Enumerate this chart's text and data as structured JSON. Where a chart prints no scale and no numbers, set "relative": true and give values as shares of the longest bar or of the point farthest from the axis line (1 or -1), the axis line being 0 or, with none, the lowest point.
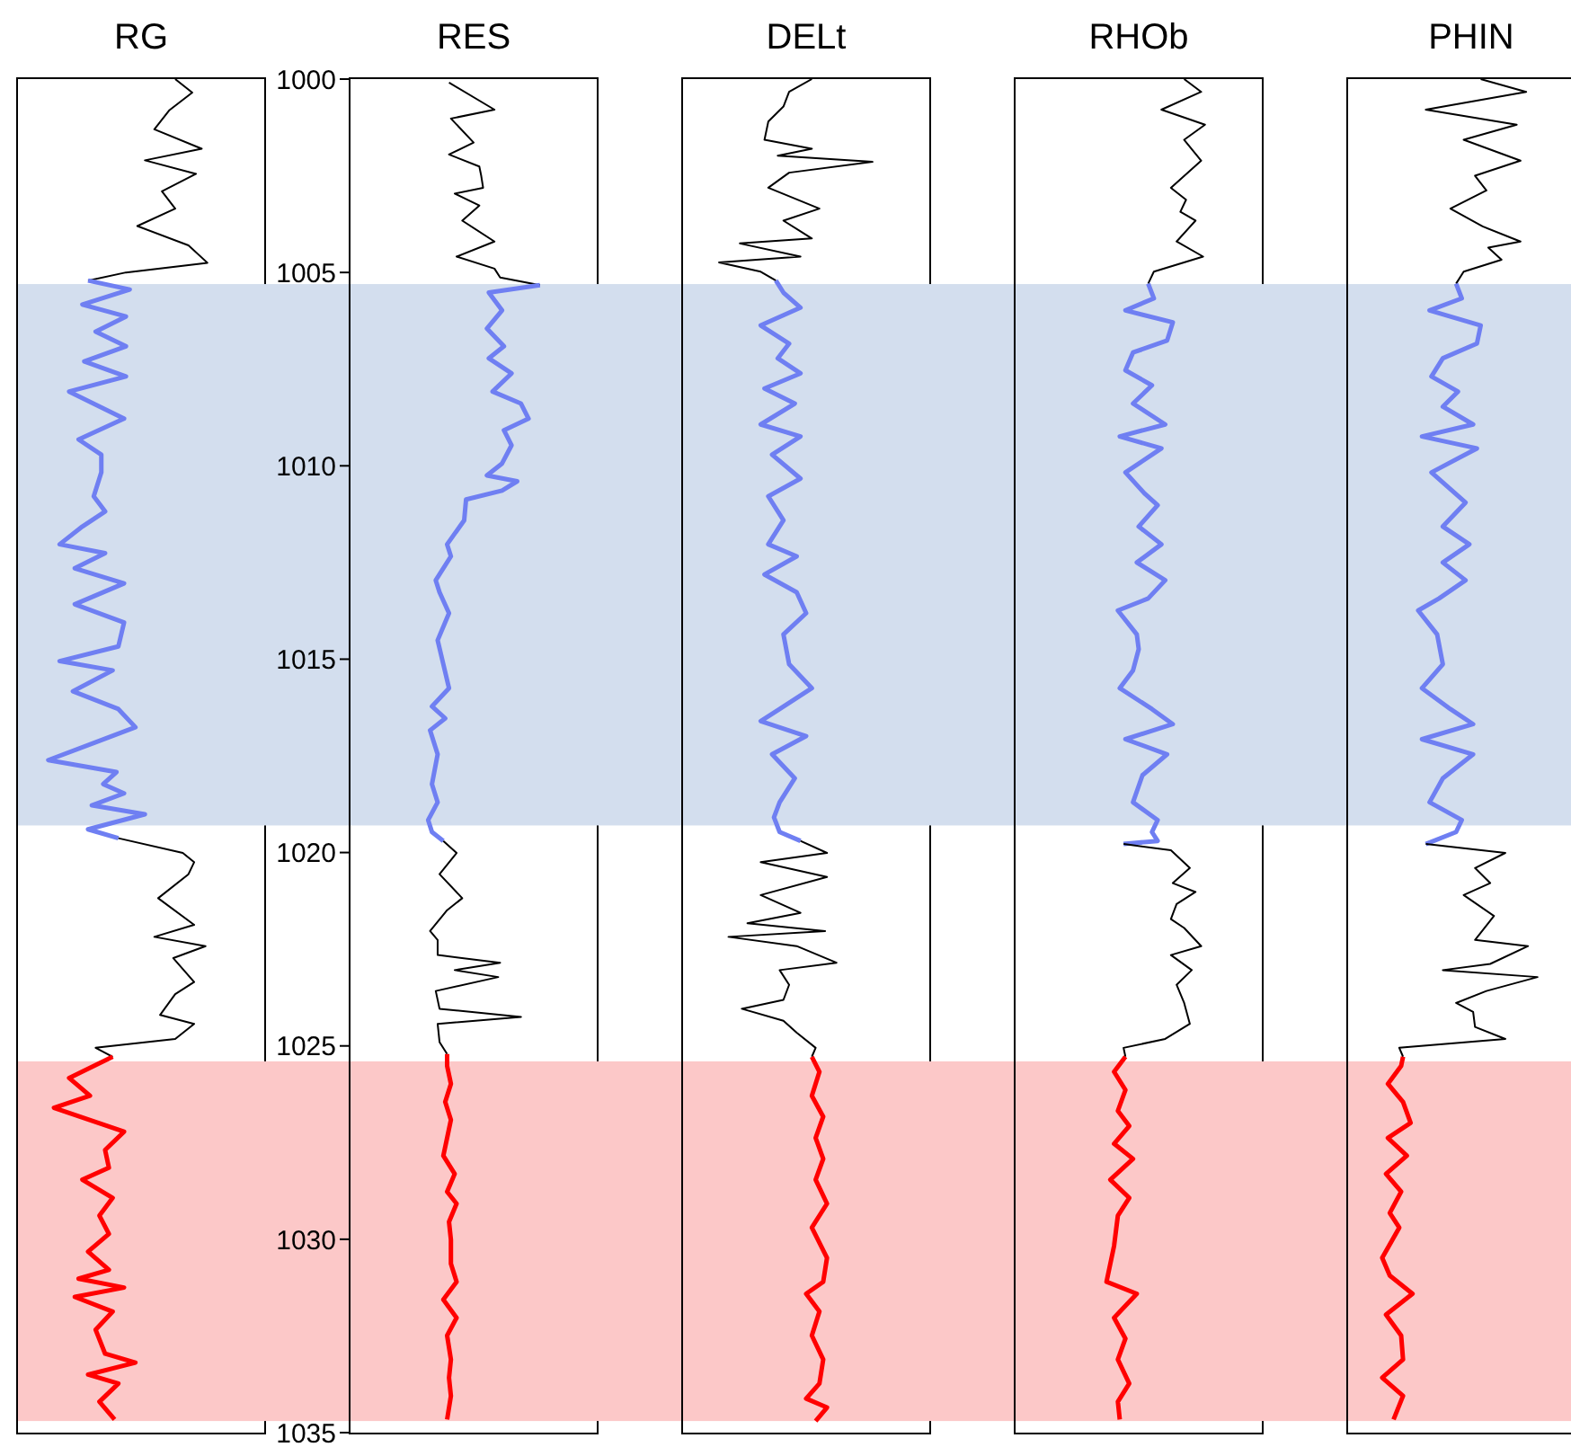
{
  "chart_data": [
    {
      "type": "line",
      "title": "RG",
      "orientation": "horizontal",
      "relative": true,
      "ylim": [
        1035,
        1000
      ],
      "tick_labels": false,
      "bands": [
        {
          "axis": "y",
          "from": 1005.3,
          "to": 1019.3,
          "color": "#d3deee"
        },
        {
          "axis": "y",
          "from": 1025.4,
          "to": 1034.7,
          "color": "#fcc8c8"
        }
      ],
      "series": [
        {
          "color": "#000000",
          "x": [
            1000,
            1000.35,
            1000.8,
            1001.3,
            1001.8,
            1002.1,
            1002.45,
            1002.9,
            1003.35,
            1003.8,
            1004.3,
            1004.75,
            1005.0,
            1005.21
          ],
          "values": [
            0.83,
            0.92,
            0.8,
            0.72,
            0.97,
            0.67,
            0.94,
            0.76,
            0.83,
            0.63,
            0.9,
            1.0,
            0.57,
            0.37
          ]
        },
        {
          "color": "#6f7ff2",
          "x": [
            1005.21,
            1005.44,
            1005.83,
            1006.14,
            1006.53,
            1006.91,
            1007.3,
            1007.69,
            1008.08,
            1008.78,
            1009.32,
            1009.71,
            1010.17,
            1010.79,
            1011.18,
            1011.57,
            1012.03,
            1012.26,
            1012.65,
            1013.04,
            1013.58,
            1014.05,
            1014.67,
            1015.05,
            1015.29,
            1015.83,
            1016.29,
            1016.76,
            1017.15,
            1017.61,
            1017.92,
            1018.23,
            1018.47,
            1018.78,
            1019.01,
            1019.4,
            1019.63
          ],
          "values": [
            0.37,
            0.59,
            0.34,
            0.57,
            0.41,
            0.57,
            0.35,
            0.57,
            0.27,
            0.56,
            0.32,
            0.44,
            0.44,
            0.4,
            0.46,
            0.34,
            0.22,
            0.46,
            0.3,
            0.56,
            0.3,
            0.56,
            0.53,
            0.22,
            0.5,
            0.29,
            0.53,
            0.62,
            0.41,
            0.16,
            0.52,
            0.45,
            0.56,
            0.39,
            0.67,
            0.37,
            0.53
          ]
        },
        {
          "color": "#000000",
          "x": [
            1019.63,
            1020.01,
            1020.25,
            1020.56,
            1021.18,
            1021.87,
            1022.18,
            1022.42,
            1022.73,
            1023.35,
            1023.66,
            1024.2,
            1024.43,
            1024.82,
            1025.05,
            1025.28
          ],
          "values": [
            0.53,
            0.87,
            0.93,
            0.9,
            0.74,
            0.93,
            0.72,
            0.99,
            0.82,
            0.93,
            0.83,
            0.75,
            0.93,
            0.83,
            0.41,
            0.5
          ]
        },
        {
          "color": "#ff0000",
          "x": [
            1025.28,
            1025.83,
            1026.29,
            1026.6,
            1027.22,
            1027.69,
            1028.15,
            1028.46,
            1028.93,
            1029.39,
            1029.86,
            1030.32,
            1030.79,
            1031.02,
            1031.25,
            1031.49,
            1031.87,
            1032.34,
            1032.96,
            1033.19,
            1033.5,
            1033.73,
            1034.2,
            1034.66
          ],
          "values": [
            0.5,
            0.27,
            0.38,
            0.19,
            0.56,
            0.46,
            0.48,
            0.34,
            0.5,
            0.43,
            0.48,
            0.37,
            0.48,
            0.32,
            0.56,
            0.3,
            0.5,
            0.41,
            0.46,
            0.62,
            0.37,
            0.53,
            0.43,
            0.51
          ]
        }
      ]
    },
    {
      "type": "line",
      "title": "RES",
      "orientation": "horizontal",
      "relative": true,
      "ylim": [
        1035,
        1000
      ],
      "yticks": [
        1000,
        1005,
        1010,
        1015,
        1020,
        1025,
        1030,
        1035
      ],
      "tick_labels": "y",
      "bands": [
        {
          "axis": "y",
          "from": 1005.3,
          "to": 1019.3,
          "color": "#d3deee"
        },
        {
          "axis": "y",
          "from": 1025.4,
          "to": 1034.7,
          "color": "#fcc8c8"
        }
      ],
      "series": [
        {
          "color": "#000000",
          "x": [
            1000.09,
            1000.79,
            1001.02,
            1001.64,
            1001.95,
            1002.26,
            1002.5,
            1002.81,
            1002.96,
            1003.27,
            1003.66,
            1004.2,
            1004.59,
            1004.9,
            1005.13,
            1005.33
          ],
          "values": [
            0.52,
            0.76,
            0.53,
            0.65,
            0.52,
            0.68,
            0.69,
            0.7,
            0.55,
            0.68,
            0.59,
            0.76,
            0.56,
            0.76,
            0.79,
            1.0
          ]
        },
        {
          "color": "#6f7ff2",
          "x": [
            1005.33,
            1005.52,
            1005.98,
            1006.45,
            1006.91,
            1007.22,
            1007.61,
            1008.08,
            1008.39,
            1008.78,
            1009.08,
            1009.47,
            1009.94,
            1010.25,
            1010.4,
            1010.64,
            1010.87,
            1011.41,
            1012.03,
            1012.34,
            1012.96,
            1013.27,
            1013.81,
            1014.51,
            1015.13,
            1015.75,
            1016.22,
            1016.53,
            1016.84,
            1017.46,
            1018.23,
            1018.7,
            1019.16,
            1019.47,
            1019.7
          ],
          "values": [
            1.0,
            0.73,
            0.8,
            0.72,
            0.81,
            0.73,
            0.85,
            0.75,
            0.9,
            0.94,
            0.81,
            0.85,
            0.8,
            0.72,
            0.88,
            0.8,
            0.61,
            0.6,
            0.51,
            0.53,
            0.45,
            0.47,
            0.52,
            0.46,
            0.49,
            0.52,
            0.43,
            0.5,
            0.42,
            0.46,
            0.43,
            0.46,
            0.41,
            0.43,
            0.49
          ]
        },
        {
          "color": "#000000",
          "x": [
            1019.7,
            1020.01,
            1020.56,
            1021.18,
            1021.49,
            1022.03,
            1022.26,
            1022.65,
            1022.85,
            1023.04,
            1023.22,
            1023.58,
            1024.04,
            1024.25,
            1024.43,
            1024.9,
            1025.21
          ],
          "values": [
            0.49,
            0.56,
            0.47,
            0.59,
            0.51,
            0.42,
            0.46,
            0.46,
            0.79,
            0.55,
            0.78,
            0.45,
            0.47,
            0.9,
            0.46,
            0.47,
            0.51
          ]
        },
        {
          "color": "#ff0000",
          "x": [
            1025.21,
            1025.52,
            1025.98,
            1026.45,
            1026.91,
            1027.38,
            1027.84,
            1028.31,
            1028.77,
            1029.08,
            1029.55,
            1030.01,
            1030.63,
            1031.1,
            1031.56,
            1032.03,
            1032.49,
            1033.11,
            1033.58,
            1034.05,
            1034.66
          ],
          "values": [
            0.51,
            0.51,
            0.53,
            0.5,
            0.53,
            0.51,
            0.49,
            0.55,
            0.51,
            0.56,
            0.52,
            0.53,
            0.53,
            0.56,
            0.49,
            0.56,
            0.51,
            0.53,
            0.52,
            0.53,
            0.51
          ]
        }
      ]
    },
    {
      "type": "line",
      "title": "DELt",
      "orientation": "horizontal",
      "relative": true,
      "ylim": [
        1035,
        1000
      ],
      "tick_labels": false,
      "bands": [
        {
          "axis": "y",
          "from": 1005.3,
          "to": 1019.3,
          "color": "#d3deee"
        },
        {
          "axis": "y",
          "from": 1025.4,
          "to": 1034.7,
          "color": "#fcc8c8"
        }
      ],
      "series": [
        {
          "color": "#000000",
          "x": [
            1000,
            1000.33,
            1000.71,
            1001.1,
            1001.57,
            1001.8,
            1001.98,
            1002.14,
            1002.42,
            1002.81,
            1003.35,
            1003.66,
            1004.12,
            1004.25,
            1004.59,
            1004.74,
            1004.98,
            1005.21
          ],
          "values": [
            0.68,
            0.56,
            0.53,
            0.45,
            0.43,
            0.68,
            0.5,
            1.0,
            0.56,
            0.45,
            0.72,
            0.53,
            0.68,
            0.3,
            0.62,
            0.19,
            0.41,
            0.49
          ]
        },
        {
          "color": "#6f7ff2",
          "x": [
            1005.21,
            1005.52,
            1005.91,
            1006.37,
            1006.84,
            1007.22,
            1007.61,
            1008.0,
            1008.39,
            1008.93,
            1009.24,
            1009.71,
            1010.33,
            1010.79,
            1011.41,
            1012.03,
            1012.34,
            1012.81,
            1013.27,
            1013.81,
            1014.36,
            1015.13,
            1015.75,
            1016.29,
            1016.6,
            1016.99,
            1017.46,
            1018.08,
            1018.7,
            1019.09,
            1019.47,
            1019.7
          ],
          "values": [
            0.49,
            0.53,
            0.62,
            0.41,
            0.56,
            0.5,
            0.62,
            0.43,
            0.59,
            0.41,
            0.62,
            0.47,
            0.62,
            0.45,
            0.53,
            0.45,
            0.6,
            0.43,
            0.6,
            0.65,
            0.53,
            0.56,
            0.68,
            0.51,
            0.41,
            0.65,
            0.47,
            0.59,
            0.51,
            0.48,
            0.51,
            0.62
          ]
        },
        {
          "color": "#000000",
          "x": [
            1019.7,
            1020.01,
            1020.25,
            1020.63,
            1021.1,
            1021.56,
            1021.83,
            1022.03,
            1022.18,
            1022.42,
            1022.85,
            1023.04,
            1023.42,
            1023.81,
            1024.04,
            1024.35,
            1024.66,
            1025.05,
            1025.28
          ],
          "values": [
            0.62,
            0.76,
            0.41,
            0.76,
            0.41,
            0.62,
            0.34,
            0.75,
            0.24,
            0.6,
            0.81,
            0.51,
            0.56,
            0.53,
            0.31,
            0.53,
            0.6,
            0.7,
            0.68
          ]
        },
        {
          "color": "#ff0000",
          "x": [
            1025.28,
            1025.67,
            1026.29,
            1026.83,
            1027.38,
            1027.92,
            1028.46,
            1029.08,
            1029.7,
            1030.48,
            1031.1,
            1031.41,
            1031.87,
            1032.49,
            1033.11,
            1033.73,
            1034.12,
            1034.35,
            1034.7
          ],
          "values": [
            0.68,
            0.72,
            0.68,
            0.74,
            0.7,
            0.74,
            0.7,
            0.76,
            0.68,
            0.76,
            0.74,
            0.65,
            0.72,
            0.68,
            0.74,
            0.72,
            0.65,
            0.76,
            0.7
          ]
        }
      ]
    },
    {
      "type": "line",
      "title": "RHOb",
      "orientation": "horizontal",
      "relative": true,
      "ylim": [
        1035,
        1000
      ],
      "tick_labels": false,
      "bands": [
        {
          "axis": "y",
          "from": 1005.3,
          "to": 1019.3,
          "color": "#d3deee"
        },
        {
          "axis": "y",
          "from": 1025.4,
          "to": 1034.7,
          "color": "#fcc8c8"
        }
      ],
      "series": [
        {
          "color": "#000000",
          "x": [
            1000,
            1000.33,
            1000.79,
            1001.18,
            1001.57,
            1002.11,
            1002.81,
            1003.12,
            1003.43,
            1003.66,
            1004.2,
            1004.59,
            1004.98,
            1005.29
          ],
          "values": [
            0.89,
            0.98,
            0.77,
            1.0,
            0.89,
            0.98,
            0.82,
            0.9,
            0.87,
            0.95,
            0.85,
            0.99,
            0.73,
            0.7
          ]
        },
        {
          "color": "#6f7ff2",
          "x": [
            1005.29,
            1005.67,
            1005.98,
            1006.29,
            1006.76,
            1007.07,
            1007.53,
            1007.92,
            1008.39,
            1008.93,
            1009.24,
            1009.55,
            1010.17,
            1010.71,
            1011.02,
            1011.57,
            1012.03,
            1012.5,
            1012.96,
            1013.43,
            1013.74,
            1014.36,
            1014.74,
            1015.29,
            1015.75,
            1016.29,
            1016.68,
            1017.07,
            1017.46,
            1018.0,
            1018.7,
            1019.16,
            1019.47,
            1019.7,
            1019.78
          ],
          "values": [
            0.7,
            0.73,
            0.58,
            0.83,
            0.8,
            0.62,
            0.58,
            0.72,
            0.62,
            0.79,
            0.55,
            0.77,
            0.58,
            0.68,
            0.75,
            0.65,
            0.77,
            0.64,
            0.79,
            0.7,
            0.54,
            0.64,
            0.65,
            0.62,
            0.55,
            0.72,
            0.83,
            0.58,
            0.8,
            0.67,
            0.62,
            0.75,
            0.72,
            0.75,
            0.57
          ]
        },
        {
          "color": "#000000",
          "x": [
            1019.78,
            1019.94,
            1020.4,
            1020.79,
            1021.02,
            1021.33,
            1021.72,
            1021.95,
            1022.42,
            1022.65,
            1023.04,
            1023.42,
            1023.89,
            1024.43,
            1024.82,
            1025.05,
            1025.28
          ],
          "values": [
            0.57,
            0.82,
            0.92,
            0.83,
            0.95,
            0.85,
            0.82,
            0.89,
            0.98,
            0.82,
            0.93,
            0.85,
            0.89,
            0.92,
            0.79,
            0.57,
            0.58
          ]
        },
        {
          "color": "#ff0000",
          "x": [
            1025.28,
            1025.67,
            1026.14,
            1026.68,
            1027.07,
            1027.53,
            1027.92,
            1028.46,
            1028.93,
            1029.39,
            1030.17,
            1031.1,
            1031.41,
            1032.03,
            1032.57,
            1033.11,
            1033.73,
            1034.2,
            1034.66
          ],
          "values": [
            0.58,
            0.52,
            0.58,
            0.54,
            0.6,
            0.52,
            0.62,
            0.5,
            0.6,
            0.54,
            0.52,
            0.48,
            0.64,
            0.52,
            0.58,
            0.54,
            0.6,
            0.54,
            0.55
          ]
        }
      ]
    },
    {
      "type": "line",
      "title": "PHIN",
      "orientation": "horizontal",
      "relative": true,
      "ylim": [
        1035,
        1000
      ],
      "tick_labels": false,
      "bands": [
        {
          "axis": "y",
          "from": 1005.3,
          "to": 1019.3,
          "color": "#d3deee"
        },
        {
          "axis": "y",
          "from": 1025.4,
          "to": 1034.7,
          "color": "#fcc8c8"
        }
      ],
      "series": [
        {
          "color": "#000000",
          "x": [
            1000,
            1000.33,
            1000.79,
            1001.18,
            1001.57,
            1002.11,
            1002.5,
            1002.88,
            1003.35,
            1003.81,
            1004.2,
            1004.36,
            1004.67,
            1004.98,
            1005.29
          ],
          "values": [
            0.7,
            0.94,
            0.41,
            0.89,
            0.61,
            0.91,
            0.67,
            0.73,
            0.54,
            0.71,
            0.91,
            0.74,
            0.81,
            0.61,
            0.57
          ]
        },
        {
          "color": "#6f7ff2",
          "x": [
            1005.29,
            1005.67,
            1005.98,
            1006.37,
            1006.84,
            1007.22,
            1007.69,
            1008.08,
            1008.47,
            1008.93,
            1009.24,
            1009.55,
            1010.17,
            1010.95,
            1011.57,
            1012.03,
            1012.5,
            1012.96,
            1013.43,
            1013.74,
            1014.36,
            1015.13,
            1015.75,
            1016.29,
            1016.68,
            1017.07,
            1017.46,
            1018.08,
            1018.7,
            1019.16,
            1019.47,
            1019.78
          ],
          "values": [
            0.57,
            0.6,
            0.43,
            0.7,
            0.68,
            0.5,
            0.44,
            0.58,
            0.5,
            0.66,
            0.39,
            0.68,
            0.44,
            0.62,
            0.5,
            0.64,
            0.5,
            0.62,
            0.48,
            0.37,
            0.47,
            0.5,
            0.39,
            0.54,
            0.66,
            0.39,
            0.66,
            0.5,
            0.43,
            0.6,
            0.57,
            0.41
          ]
        },
        {
          "color": "#000000",
          "x": [
            1019.78,
            1020.01,
            1020.4,
            1020.79,
            1021.1,
            1021.64,
            1022.26,
            1022.42,
            1022.88,
            1023.04,
            1023.22,
            1023.58,
            1023.89,
            1024.12,
            1024.51,
            1024.82,
            1025.05,
            1025.28
          ],
          "values": [
            0.41,
            0.83,
            0.67,
            0.75,
            0.61,
            0.77,
            0.67,
            0.95,
            0.75,
            0.5,
            1.0,
            0.73,
            0.57,
            0.66,
            0.67,
            0.83,
            0.27,
            0.29
          ]
        },
        {
          "color": "#ff0000",
          "x": [
            1025.28,
            1025.52,
            1025.98,
            1026.45,
            1026.99,
            1027.38,
            1027.84,
            1028.31,
            1028.77,
            1029.32,
            1029.7,
            1030.48,
            1030.94,
            1031.41,
            1031.95,
            1032.49,
            1033.11,
            1033.58,
            1034.05,
            1034.66
          ],
          "values": [
            0.29,
            0.28,
            0.21,
            0.29,
            0.33,
            0.21,
            0.31,
            0.2,
            0.28,
            0.22,
            0.27,
            0.18,
            0.22,
            0.34,
            0.2,
            0.28,
            0.29,
            0.18,
            0.29,
            0.24
          ]
        }
      ]
    }
  ]
}
